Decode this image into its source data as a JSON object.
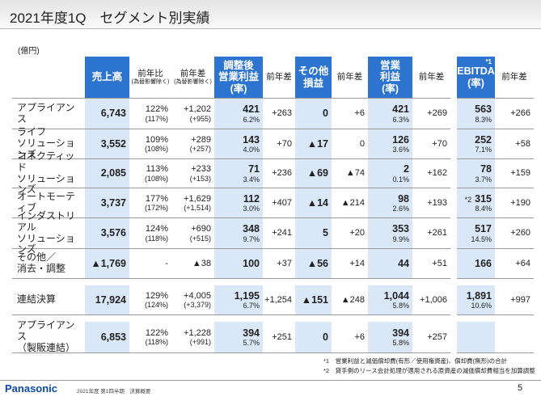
{
  "header": {
    "title": "2021年度1Q　セグメント別実績"
  },
  "unit": "(億円)",
  "table": {
    "columns": {
      "sales": {
        "lines": [
          "売上高"
        ]
      },
      "yoy": {
        "lines": [
          "前年比"
        ],
        "sub": "(為替影響除く)"
      },
      "yoy_diff": {
        "lines": [
          "前年差"
        ],
        "sub": "(為替影響除く)"
      },
      "adj_op": {
        "lines": [
          "調整後",
          "営業利益",
          "(率)"
        ]
      },
      "adj_op_diff": {
        "lines": [
          "前年差"
        ]
      },
      "other": {
        "lines": [
          "その他",
          "損益"
        ]
      },
      "other_diff": {
        "lines": [
          "前年差"
        ]
      },
      "op": {
        "lines": [
          "営業",
          "利益",
          "(率)"
        ]
      },
      "op_diff": {
        "lines": [
          "前年差"
        ]
      },
      "ebitda": {
        "lines": [
          "EBITDA",
          "(率)"
        ],
        "note": "*1"
      },
      "ebitda_diff": {
        "lines": [
          "前年差"
        ]
      }
    },
    "rows": [
      {
        "name": [
          "アプライアンス"
        ],
        "cells": {
          "sales": {
            "v": "6,743"
          },
          "yoy": {
            "v": "122%",
            "s": "(117%)"
          },
          "yoy_diff": {
            "v": "+1,202",
            "s": "(+955)"
          },
          "adj_op": {
            "v": "421",
            "s": "6.2%"
          },
          "adj_op_diff": {
            "v": "+263"
          },
          "other": {
            "v": "0"
          },
          "other_diff": {
            "v": "+6"
          },
          "op": {
            "v": "421",
            "s": "6.3%"
          },
          "op_diff": {
            "v": "+269"
          },
          "ebitda": {
            "v": "563",
            "s": "8.3%"
          },
          "ebitda_diff": {
            "v": "+266"
          }
        }
      },
      {
        "name": [
          "ライフ",
          "ソリューションズ"
        ],
        "cells": {
          "sales": {
            "v": "3,552"
          },
          "yoy": {
            "v": "109%",
            "s": "(108%)"
          },
          "yoy_diff": {
            "v": "+289",
            "s": "(+257)"
          },
          "adj_op": {
            "v": "143",
            "s": "4.0%"
          },
          "adj_op_diff": {
            "v": "+70"
          },
          "other": {
            "v": "▲17"
          },
          "other_diff": {
            "v": "0"
          },
          "op": {
            "v": "126",
            "s": "3.6%"
          },
          "op_diff": {
            "v": "+70"
          },
          "ebitda": {
            "v": "252",
            "s": "7.1%"
          },
          "ebitda_diff": {
            "v": "+58"
          }
        }
      },
      {
        "name": [
          "コネクティッド",
          "ソリューションズ"
        ],
        "cells": {
          "sales": {
            "v": "2,085"
          },
          "yoy": {
            "v": "113%",
            "s": "(108%)"
          },
          "yoy_diff": {
            "v": "+233",
            "s": "(+153)"
          },
          "adj_op": {
            "v": "71",
            "s": "3.4%"
          },
          "adj_op_diff": {
            "v": "+236"
          },
          "other": {
            "v": "▲69"
          },
          "other_diff": {
            "v": "▲74"
          },
          "op": {
            "v": "2",
            "s": "0.1%"
          },
          "op_diff": {
            "v": "+162"
          },
          "ebitda": {
            "v": "78",
            "s": "3.7%"
          },
          "ebitda_diff": {
            "v": "+159"
          }
        }
      },
      {
        "name": [
          "オートモーティブ"
        ],
        "cells": {
          "sales": {
            "v": "3,737"
          },
          "yoy": {
            "v": "177%",
            "s": "(172%)"
          },
          "yoy_diff": {
            "v": "+1,629",
            "s": "(+1,514)"
          },
          "adj_op": {
            "v": "112",
            "s": "3.0%"
          },
          "adj_op_diff": {
            "v": "+407"
          },
          "other": {
            "v": "▲14"
          },
          "other_diff": {
            "v": "▲214"
          },
          "op": {
            "v": "98",
            "s": "2.6%"
          },
          "op_diff": {
            "v": "+193"
          },
          "ebitda": {
            "n": "*2",
            "v": "315",
            "s": "8.4%"
          },
          "ebitda_diff": {
            "v": "+190"
          }
        }
      },
      {
        "name": [
          "インダストリアル",
          "ソリューションズ"
        ],
        "cells": {
          "sales": {
            "v": "3,576"
          },
          "yoy": {
            "v": "124%",
            "s": "(118%)"
          },
          "yoy_diff": {
            "v": "+690",
            "s": "(+515)"
          },
          "adj_op": {
            "v": "348",
            "s": "9.7%"
          },
          "adj_op_diff": {
            "v": "+241"
          },
          "other": {
            "v": "5"
          },
          "other_diff": {
            "v": "+20"
          },
          "op": {
            "v": "353",
            "s": "9.9%"
          },
          "op_diff": {
            "v": "+261"
          },
          "ebitda": {
            "v": "517",
            "s": "14.5%"
          },
          "ebitda_diff": {
            "v": "+260"
          }
        }
      },
      {
        "name": [
          "その他／",
          "消去・調整"
        ],
        "cells": {
          "sales": {
            "v": "▲1,769"
          },
          "yoy": {
            "v": "-"
          },
          "yoy_diff": {
            "v": "▲38"
          },
          "adj_op": {
            "v": "100"
          },
          "adj_op_diff": {
            "v": "+37"
          },
          "other": {
            "v": "▲56"
          },
          "other_diff": {
            "v": "+14"
          },
          "op": {
            "v": "44"
          },
          "op_diff": {
            "v": "+51"
          },
          "ebitda": {
            "v": "166"
          },
          "ebitda_diff": {
            "v": "+64"
          }
        }
      },
      {
        "name": [
          "連結決算"
        ],
        "cells": {
          "sales": {
            "v": "17,924"
          },
          "yoy": {
            "v": "129%",
            "s": "(124%)"
          },
          "yoy_diff": {
            "v": "+4,005",
            "s": "(+3,379)"
          },
          "adj_op": {
            "v": "1,195",
            "s": "6.7%"
          },
          "adj_op_diff": {
            "v": "+1,254"
          },
          "other": {
            "v": "▲151"
          },
          "other_diff": {
            "v": "▲248"
          },
          "op": {
            "v": "1,044",
            "s": "5.8%"
          },
          "op_diff": {
            "v": "+1,006"
          },
          "ebitda": {
            "v": "1,891",
            "s": "10.6%"
          },
          "ebitda_diff": {
            "v": "+997"
          }
        }
      },
      {
        "name": [
          "アプライアンス",
          "（製販連結）"
        ],
        "cells": {
          "sales": {
            "v": "6,853"
          },
          "yoy": {
            "v": "122%",
            "s": "(118%)"
          },
          "yoy_diff": {
            "v": "+1,228",
            "s": "(+991)"
          },
          "adj_op": {
            "v": "394",
            "s": "5.7%"
          },
          "adj_op_diff": {
            "v": "+251"
          },
          "other": {
            "v": "0"
          },
          "other_diff": {
            "v": "+6"
          },
          "op": {
            "v": "394",
            "s": "5.8%"
          },
          "op_diff": {
            "v": "+257"
          }
        }
      }
    ]
  },
  "footnotes": [
    "*1　営業利益と減価償却費(有形／使用権資産)、償却費(無形)の合計",
    "*2　貸手側のリース会計処理が適用される原資産の減価償却費相当を加算調整"
  ],
  "footer": {
    "logo": "Panasonic",
    "text": "2021年度 第1四半期　決算概要",
    "page": "5"
  }
}
